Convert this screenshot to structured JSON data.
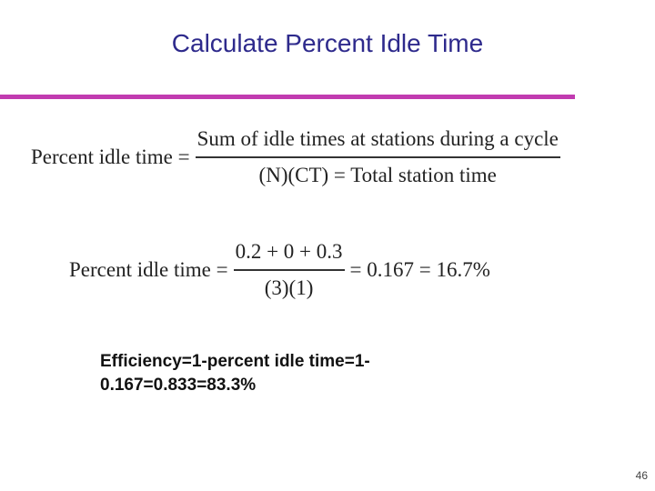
{
  "slide": {
    "title": "Calculate Percent Idle Time",
    "formula_general": {
      "lhs": "Percent idle time =",
      "numerator": "Sum of idle times at stations during a cycle",
      "denominator": "(N)(CT) = Total station time"
    },
    "formula_applied": {
      "lhs": "Percent idle time =",
      "numerator": "0.2 + 0 + 0.3",
      "denominator": "(3)(1)",
      "rhs": "= 0.167 = 16.7%"
    },
    "efficiency_text": "Efficiency=1-percent idle time=1-0.167=0.833=83.3%",
    "page_number": "46"
  },
  "colors": {
    "title": "#2e2a8c",
    "rule": "#c13bb0"
  }
}
